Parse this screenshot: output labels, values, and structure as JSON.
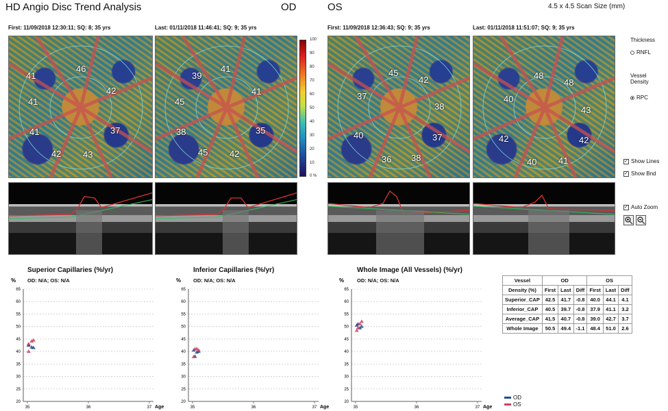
{
  "header": {
    "title": "HD Angio Disc Trend Analysis",
    "od_label": "OD",
    "os_label": "OS",
    "scan_size": "4.5 x 4.5 Scan Size (mm)"
  },
  "scans": {
    "od_first": "First:  11/09/2018 12:30:11; SQ: 8; 35 yrs",
    "od_last": "Last:  01/11/2018 11:46:41; SQ: 9; 35 yrs",
    "os_first": "First:  11/09/2018 12:36:43; SQ: 9; 35 yrs",
    "os_last": "Last:  01/11/2018 11:51:07; SQ: 9; 35 yrs"
  },
  "maps": {
    "od_first": [
      "46",
      "41",
      "42",
      "41",
      "41",
      "37",
      "42",
      "43"
    ],
    "od_last": [
      "41",
      "39",
      "41",
      "45",
      "38",
      "35",
      "45",
      "42"
    ],
    "os_first": [
      "45",
      "42",
      "37",
      "38",
      "40",
      "37",
      "36",
      "38"
    ],
    "os_last": [
      "48",
      "48",
      "40",
      "43",
      "42",
      "42",
      "40",
      "41"
    ]
  },
  "colorbar": {
    "ticks": [
      "100",
      "90",
      "80",
      "70",
      "60",
      "50",
      "40",
      "30",
      "20",
      "10",
      "0 %"
    ],
    "colors": [
      "#8b0000",
      "#e02020",
      "#f07820",
      "#f0d030",
      "#40c0b0",
      "#2050a0",
      "#201060"
    ]
  },
  "side_panel": {
    "thickness_label": "Thickness",
    "rnfl_label": "RNFL",
    "vessel_density_label": "Vessel\nDensity",
    "rpc_label": "RPC",
    "show_lines": "Show Lines",
    "show_bnd": "Show Bnd",
    "auto_zoom": "Auto Zoom",
    "zoom_in_icon": "zoom-in-icon",
    "zoom_out_icon": "zoom-out-icon"
  },
  "charts": {
    "y_unit": "%",
    "x_unit": "Age",
    "sub": "OD: N/A; OS: N/A",
    "superior_title": "Superior Capillaries (%/yr)",
    "inferior_title": "Inferior Capillaries (%/yr)",
    "whole_title": "Whole Image (All Vessels) (%/yr)"
  },
  "chart_data": [
    {
      "type": "scatter",
      "title": "Superior Capillaries (%/yr)",
      "ylabel": "%",
      "xlabel": "Age",
      "ylim": [
        20,
        65
      ],
      "xlim": [
        35,
        37
      ],
      "yticks": [
        "20",
        "25",
        "30",
        "35",
        "40",
        "45",
        "50",
        "55",
        "60",
        "65"
      ],
      "xticks": [
        "35",
        "36",
        "37"
      ],
      "series": [
        {
          "name": "OD",
          "color": "#1f4e8c",
          "points": [
            [
              35.02,
              42.5
            ],
            [
              35.07,
              41.7
            ],
            [
              35.02,
              42.5
            ],
            [
              35.1,
              41.5
            ]
          ]
        },
        {
          "name": "OS",
          "color": "#d04060",
          "points": [
            [
              35.02,
              40.0
            ],
            [
              35.07,
              44.1
            ],
            [
              35.1,
              44.5
            ],
            [
              35.02,
              43.0
            ]
          ]
        }
      ]
    },
    {
      "type": "scatter",
      "title": "Inferior Capillaries (%/yr)",
      "ylabel": "%",
      "xlabel": "Age",
      "ylim": [
        20,
        65
      ],
      "xlim": [
        35,
        37
      ],
      "yticks": [
        "20",
        "25",
        "30",
        "35",
        "40",
        "45",
        "50",
        "55",
        "60",
        "65"
      ],
      "xticks": [
        "35",
        "36",
        "37"
      ],
      "series": [
        {
          "name": "OD",
          "color": "#1f4e8c",
          "points": [
            [
              35.02,
              40.5
            ],
            [
              35.07,
              39.7
            ],
            [
              35.1,
              40.0
            ],
            [
              35.04,
              38.0
            ]
          ]
        },
        {
          "name": "OS",
          "color": "#d04060",
          "points": [
            [
              35.02,
              37.9
            ],
            [
              35.07,
              41.1
            ],
            [
              35.1,
              40.5
            ],
            [
              35.04,
              41.0
            ]
          ]
        }
      ]
    },
    {
      "type": "scatter",
      "title": "Whole Image (All Vessels) (%/yr)",
      "ylabel": "%",
      "xlabel": "Age",
      "ylim": [
        20,
        65
      ],
      "xlim": [
        35,
        37
      ],
      "yticks": [
        "20",
        "25",
        "30",
        "35",
        "40",
        "45",
        "50",
        "55",
        "60",
        "65"
      ],
      "xticks": [
        "35",
        "36",
        "37"
      ],
      "series": [
        {
          "name": "OD",
          "color": "#1f4e8c",
          "points": [
            [
              35.02,
              50.5
            ],
            [
              35.07,
              49.4
            ],
            [
              35.1,
              50.0
            ],
            [
              35.04,
              51.0
            ]
          ]
        },
        {
          "name": "OS",
          "color": "#d04060",
          "points": [
            [
              35.02,
              48.4
            ],
            [
              35.07,
              51.0
            ],
            [
              35.1,
              52.0
            ],
            [
              35.04,
              49.5
            ]
          ]
        }
      ]
    }
  ],
  "legend": {
    "od": "OD",
    "os": "OS",
    "od_color": "#1f4e8c",
    "os_color": "#d04060"
  },
  "table": {
    "h_vessel": "Vessel",
    "h_density": "Density (%)",
    "h_od": "OD",
    "h_os": "OS",
    "cols": [
      "First",
      "Last",
      "Diff",
      "First",
      "Last",
      "Diff"
    ],
    "rows": [
      {
        "label": "Superior_CAP",
        "vals": [
          "42.5",
          "41.7",
          "-0.8",
          "40.0",
          "44.1",
          "4.1"
        ]
      },
      {
        "label": "Inferior_CAP",
        "vals": [
          "40.5",
          "39.7",
          "-0.8",
          "37.9",
          "41.1",
          "3.2"
        ]
      },
      {
        "label": "Average_CAP",
        "vals": [
          "41.5",
          "40.7",
          "-0.8",
          "39.0",
          "42.7",
          "3.7"
        ]
      },
      {
        "label": "Whole Image",
        "vals": [
          "50.5",
          "49.4",
          "-1.1",
          "48.4",
          "51.0",
          "2.6"
        ]
      }
    ]
  }
}
